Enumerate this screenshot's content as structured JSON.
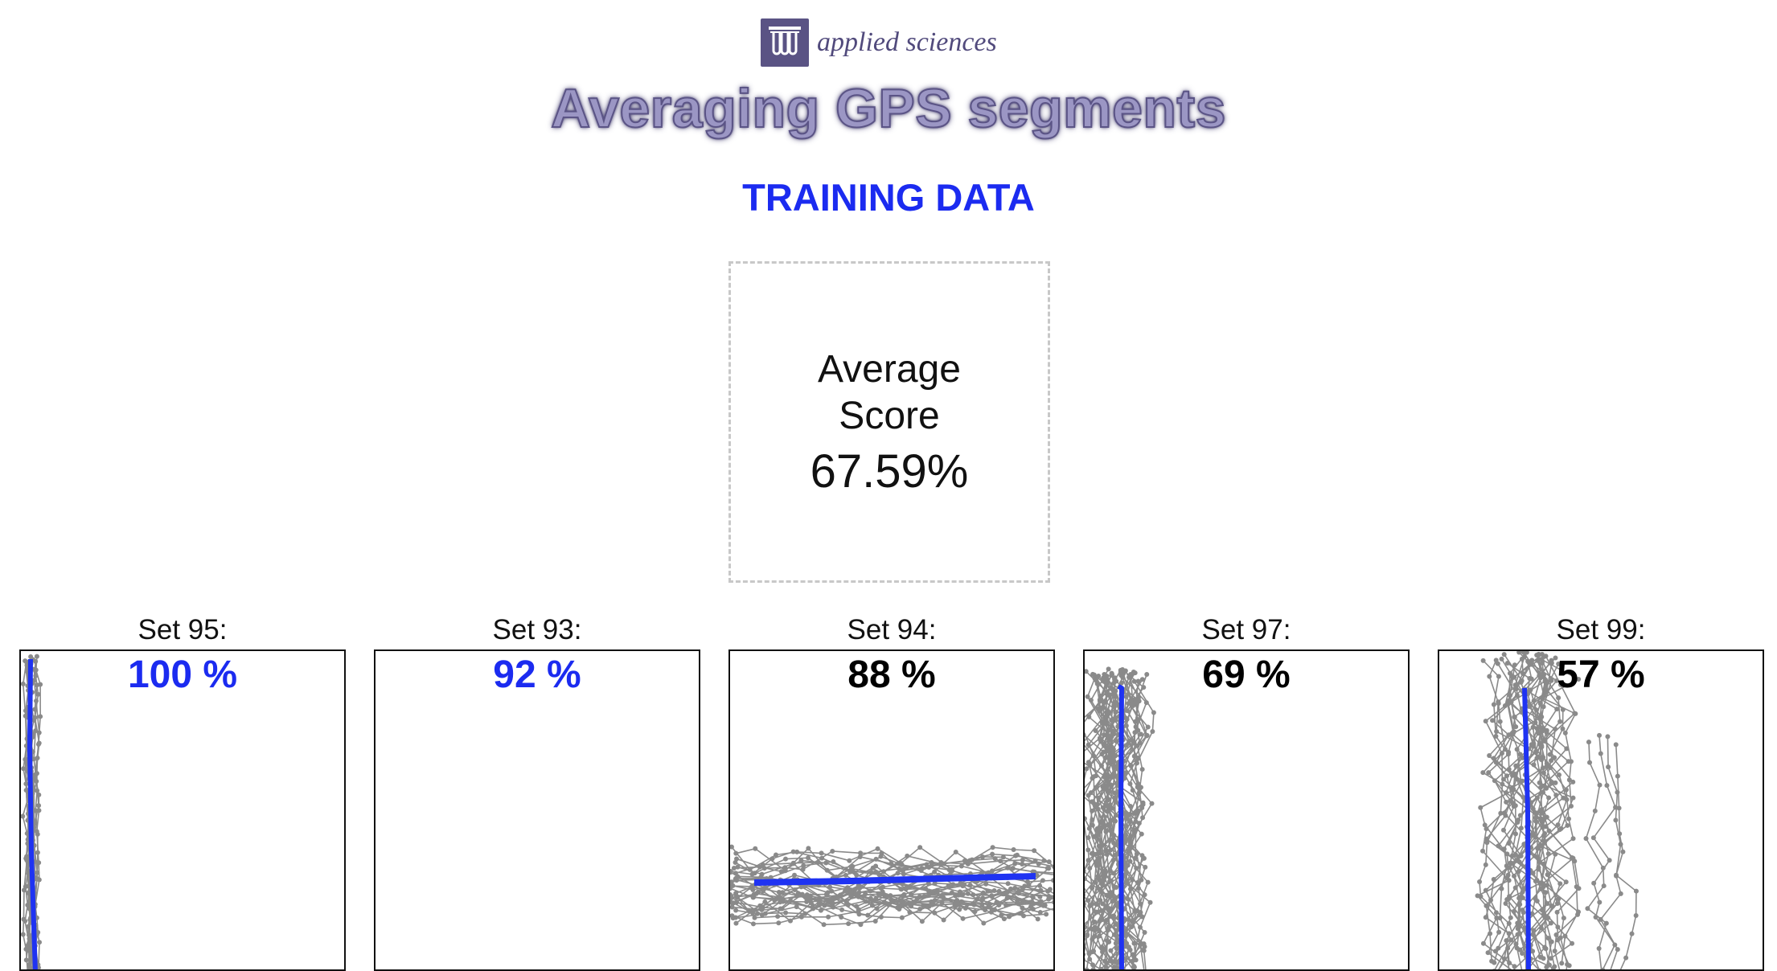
{
  "header": {
    "journal_name": "applied sciences",
    "logo_icon": "test-tubes-icon",
    "title": "Averaging GPS segments",
    "section": "TRAINING DATA"
  },
  "summary": {
    "label": "Average Score",
    "value": "67.59%"
  },
  "colors": {
    "accent_blue": "#1b2bf0",
    "trace_gray": "#8a8a8a",
    "average_line": "#1f33f2",
    "score_high": "#1b2bf0",
    "score_normal": "#000000"
  },
  "panels": [
    {
      "label": "Set 95:",
      "score": "100 %",
      "score_color": "#1b2bf0",
      "pattern": "vertical-left"
    },
    {
      "label": "Set 93:",
      "score": "92 %",
      "score_color": "#1b2bf0",
      "pattern": "empty"
    },
    {
      "label": "Set 94:",
      "score": "88 %",
      "score_color": "#000000",
      "pattern": "horizontal-bottom"
    },
    {
      "label": "Set 97:",
      "score": "69 %",
      "score_color": "#000000",
      "pattern": "vertical-dense-left"
    },
    {
      "label": "Set 99:",
      "score": "57 %",
      "score_color": "#000000",
      "pattern": "vertical-scattered"
    }
  ]
}
